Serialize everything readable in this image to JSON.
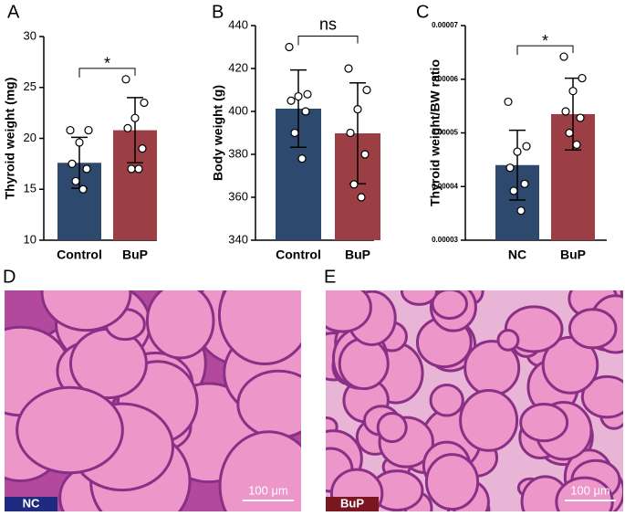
{
  "chart_data": [
    {
      "panel": "A",
      "type": "bar",
      "ylabel": "Thyroid weight (mg)",
      "categories": [
        "Control",
        "BuP"
      ],
      "values": [
        17.6,
        20.8
      ],
      "errors": [
        2.5,
        3.2
      ],
      "points": [
        [
          20.8,
          20.8,
          19.6,
          17.5,
          17.0,
          15.8,
          15.0
        ],
        [
          25.8,
          23.5,
          22.0,
          21.0,
          19.0,
          17.0,
          17.0
        ]
      ],
      "colors": [
        "#2d4a6e",
        "#9c3f45"
      ],
      "significance": "*",
      "ylim": [
        10,
        30
      ],
      "yticks": [
        10,
        15,
        20,
        25,
        30
      ]
    },
    {
      "panel": "B",
      "type": "bar",
      "ylabel": "Body weight (g)",
      "categories": [
        "Control",
        "BuP"
      ],
      "values": [
        401.3,
        389.8
      ],
      "errors": [
        18,
        23.5
      ],
      "points": [
        [
          430,
          408,
          407,
          405,
          400,
          390,
          378
        ],
        [
          420,
          410,
          401,
          390,
          380,
          366,
          360
        ]
      ],
      "colors": [
        "#2d4a6e",
        "#9c3f45"
      ],
      "significance": "ns",
      "ylim": [
        340,
        440
      ],
      "yticks": [
        340,
        360,
        380,
        400,
        420,
        440
      ]
    },
    {
      "panel": "C",
      "type": "bar",
      "ylabel": "Thyroid weight/BW ratio",
      "categories": [
        "NC",
        "BuP"
      ],
      "values": [
        4.4e-05,
        5.35e-05
      ],
      "errors": [
        6.5e-06,
        6.7e-06
      ],
      "points": [
        [
          5.58e-05,
          4.75e-05,
          4.65e-05,
          4.35e-05,
          4.05e-05,
          3.92e-05,
          3.55e-05
        ],
        [
          6.42e-05,
          6.02e-05,
          5.78e-05,
          5.4e-05,
          5.28e-05,
          5e-05,
          4.78e-05
        ]
      ],
      "colors": [
        "#2d4a6e",
        "#9c3f45"
      ],
      "significance": "*",
      "ylim": [
        3e-05,
        7e-05
      ],
      "yticks": [
        3e-05,
        4e-05,
        5e-05,
        6e-05,
        7e-05
      ]
    }
  ],
  "images": [
    {
      "panel": "D",
      "tag": "NC",
      "scale_bar": "100 μm"
    },
    {
      "panel": "E",
      "tag": "BuP",
      "scale_bar": "100 μm"
    }
  ]
}
